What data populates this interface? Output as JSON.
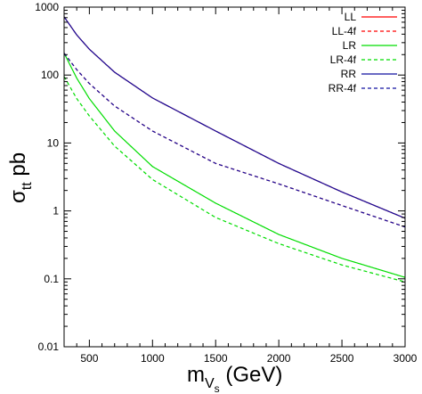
{
  "chart_data": {
    "type": "line",
    "xlabel": {
      "main": "m",
      "sub": "V",
      "subsub": "s",
      "rest": " (GeV)"
    },
    "ylabel": {
      "main": "σ",
      "sub": "tt",
      "rest": " pb"
    },
    "x_range": [
      300,
      3000
    ],
    "y_range": [
      0.01,
      1000
    ],
    "y_scale": "log",
    "x_ticks": [
      500,
      1000,
      1500,
      2000,
      2500,
      3000
    ],
    "x_tick_labels": [
      "500",
      "1000",
      "1500",
      "2000",
      "2500",
      "3000"
    ],
    "y_ticks": [
      0.01,
      0.1,
      1,
      10,
      100,
      1000
    ],
    "y_tick_labels": [
      "0.01",
      "0.1",
      "1",
      "10",
      "100",
      "1000"
    ],
    "grid": false,
    "legend_position": "top-right",
    "series": [
      {
        "name": "LL",
        "color": "#ff0000",
        "dash": "solid",
        "x": [
          300,
          400,
          500,
          700,
          1000,
          1500,
          2000,
          2500,
          3000
        ],
        "y": [
          720,
          390,
          240,
          110,
          46,
          15,
          5.0,
          1.9,
          0.78
        ]
      },
      {
        "name": "LL-4f",
        "color": "#ff0000",
        "dash": "dashed",
        "x": [
          300,
          400,
          500,
          700,
          1000,
          1500,
          2000,
          2500,
          3000
        ],
        "y": [
          210,
          120,
          75,
          35,
          15,
          5.0,
          2.5,
          1.2,
          0.58
        ]
      },
      {
        "name": "LR",
        "color": "#00dd00",
        "dash": "solid",
        "x": [
          300,
          400,
          500,
          700,
          1000,
          1500,
          2000,
          2500,
          3000
        ],
        "y": [
          210,
          90,
          45,
          15,
          4.5,
          1.3,
          0.45,
          0.2,
          0.105
        ]
      },
      {
        "name": "LR-4f",
        "color": "#00dd00",
        "dash": "dashed",
        "x": [
          300,
          400,
          500,
          700,
          1000,
          1500,
          2000,
          2500,
          3000
        ],
        "y": [
          95,
          45,
          25,
          9,
          2.9,
          0.8,
          0.33,
          0.16,
          0.09
        ]
      },
      {
        "name": "RR",
        "color": "#1010a0",
        "dash": "solid",
        "x": [
          300,
          400,
          500,
          700,
          1000,
          1500,
          2000,
          2500,
          3000
        ],
        "y": [
          720,
          390,
          240,
          110,
          46,
          15,
          5.0,
          1.9,
          0.78
        ]
      },
      {
        "name": "RR-4f",
        "color": "#1010a0",
        "dash": "dashed",
        "x": [
          300,
          400,
          500,
          700,
          1000,
          1500,
          2000,
          2500,
          3000
        ],
        "y": [
          210,
          120,
          75,
          35,
          15,
          5.0,
          2.5,
          1.2,
          0.58
        ]
      }
    ]
  }
}
